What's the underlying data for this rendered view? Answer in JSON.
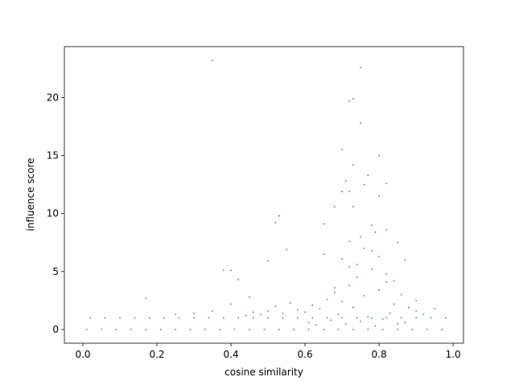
{
  "chart_data": {
    "type": "scatter",
    "x_label": "cosine similarity",
    "y_label": "influence score",
    "color": "#3a7a96",
    "xlim": [
      -0.05,
      1.028
    ],
    "ylim": [
      -1.18,
      24.4
    ],
    "xticks": [
      {
        "value": 0,
        "label": "0.0"
      },
      0.2,
      0.4,
      0.6,
      0.8,
      {
        "value": 1,
        "label": "1.0"
      }
    ],
    "yticks": [
      0,
      5,
      10,
      15,
      20
    ],
    "x": [
      0.01,
      0.05,
      0.09,
      0.13,
      0.17,
      0.21,
      0.25,
      0.29,
      0.33,
      0.37,
      0.41,
      0.45,
      0.49,
      0.53,
      0.57,
      0.61,
      0.65,
      0.69,
      0.73,
      0.77,
      0.81,
      0.85,
      0.89,
      0.93,
      0.97,
      0.02,
      0.06,
      0.1,
      0.14,
      0.18,
      0.22,
      0.26,
      0.3,
      0.34,
      0.38,
      0.42,
      0.46,
      0.5,
      0.54,
      0.58,
      0.62,
      0.66,
      0.7,
      0.74,
      0.78,
      0.82,
      0.86,
      0.9,
      0.94,
      0.98,
      0.35,
      0.75,
      0.73,
      0.72,
      0.75,
      0.7,
      0.8,
      0.73,
      0.77,
      0.71,
      0.82,
      0.76,
      0.7,
      0.72,
      0.8,
      0.68,
      0.73,
      0.53,
      0.52,
      0.65,
      0.78,
      0.79,
      0.82,
      0.75,
      0.72,
      0.38,
      0.4,
      0.17,
      0.42,
      0.55,
      0.5,
      0.85,
      0.87,
      0.6,
      0.62,
      0.64,
      0.66,
      0.68,
      0.7,
      0.72,
      0.74,
      0.76,
      0.78,
      0.8,
      0.82,
      0.84,
      0.86,
      0.88,
      0.9,
      0.92,
      0.58,
      0.56,
      0.54,
      0.52,
      0.5,
      0.48,
      0.46,
      0.44,
      0.61,
      0.63,
      0.67,
      0.69,
      0.71,
      0.73,
      0.75,
      0.77,
      0.79,
      0.81,
      0.83,
      0.85,
      0.87,
      0.65,
      0.7,
      0.74,
      0.78,
      0.82,
      0.76,
      0.72,
      0.68,
      0.8,
      0.84,
      0.9,
      0.95,
      0.3,
      0.35,
      0.25,
      0.45,
      0.4
    ],
    "y": [
      0,
      0,
      0,
      0,
      0,
      0,
      0,
      0,
      0,
      0,
      0,
      0,
      0,
      0,
      0,
      0,
      0,
      0,
      0,
      0,
      0,
      0,
      0,
      0,
      0,
      1,
      1,
      1,
      1,
      1,
      1,
      1,
      1,
      1,
      1,
      1,
      1,
      1,
      1,
      1,
      1,
      1,
      1,
      1,
      1,
      1,
      1,
      1,
      1,
      1,
      23.2,
      22.6,
      19.9,
      19.7,
      17.8,
      15.5,
      15,
      14.2,
      13.3,
      12.8,
      12.6,
      12.5,
      11.9,
      11.9,
      11.5,
      10.6,
      10.6,
      9.8,
      9.2,
      9.1,
      9,
      8.4,
      8.6,
      8,
      7.6,
      5.1,
      5.1,
      2.7,
      4.3,
      6.9,
      5.9,
      7.5,
      6,
      1.5,
      2.1,
      1.8,
      2.6,
      3.2,
      2.4,
      3.8,
      4.5,
      2.9,
      5.2,
      3.4,
      4.1,
      2.2,
      3,
      1.9,
      1.6,
      1.3,
      1.7,
      2.3,
      1.4,
      2,
      1.6,
      1.3,
      1.5,
      1.2,
      0.6,
      0.4,
      0.8,
      1.3,
      0.5,
      1.9,
      0.7,
      1.1,
      0.3,
      0.9,
      1.4,
      0.5,
      0.6,
      6.5,
      6.1,
      5.6,
      6.8,
      4.8,
      7,
      5.4,
      3.6,
      6.3,
      4.2,
      2.5,
      1.8,
      1.4,
      1.6,
      1.3,
      2.8,
      2.2
    ]
  }
}
